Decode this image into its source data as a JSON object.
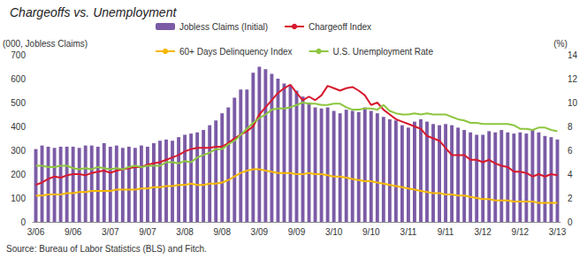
{
  "chart_data": {
    "type": "bar",
    "title": "Chargeoffs vs. Unemployment",
    "source": "Source: Bureau of Labor Statistics (BLS) and Fitch.",
    "y_label": "(000, Jobless Claims)",
    "y2_label": "(%)",
    "categories": [
      "3/06",
      null,
      null,
      null,
      null,
      null,
      "9/06",
      null,
      null,
      null,
      null,
      null,
      "3/07",
      null,
      null,
      null,
      null,
      null,
      "9/07",
      null,
      null,
      null,
      null,
      null,
      "3/08",
      null,
      null,
      null,
      null,
      null,
      "9/08",
      null,
      null,
      null,
      null,
      null,
      "3/09",
      null,
      null,
      null,
      null,
      null,
      "9/09",
      null,
      null,
      null,
      null,
      null,
      "3/10",
      null,
      null,
      null,
      null,
      null,
      "9/10",
      null,
      null,
      null,
      null,
      null,
      "3/11",
      null,
      null,
      null,
      null,
      null,
      "9/11",
      null,
      null,
      null,
      null,
      null,
      "3/12",
      null,
      null,
      null,
      null,
      null,
      "9/12",
      null,
      null,
      null,
      null,
      null,
      "3/13"
    ],
    "series": [
      {
        "name": "Jobless Claims (Initial)",
        "type": "bar",
        "color": "#7b5ba6",
        "values": [
          305,
          320,
          315,
          310,
          315,
          315,
          315,
          310,
          320,
          320,
          315,
          330,
          315,
          320,
          310,
          315,
          310,
          320,
          315,
          330,
          340,
          345,
          340,
          355,
          365,
          370,
          375,
          385,
          405,
          425,
          455,
          480,
          520,
          555,
          555,
          625,
          650,
          640,
          620,
          600,
          580,
          570,
          550,
          525,
          500,
          480,
          475,
          480,
          465,
          455,
          470,
          465,
          460,
          480,
          465,
          455,
          440,
          430,
          425,
          405,
          395,
          420,
          430,
          420,
          410,
          405,
          410,
          405,
          395,
          385,
          375,
          365,
          365,
          380,
          375,
          385,
          375,
          370,
          375,
          370,
          385,
          375,
          360,
          355,
          345
        ]
      },
      {
        "name": "Chargeoff Index",
        "type": "line",
        "axis": "y2",
        "color": "#d7192e",
        "values": [
          3.1,
          3.3,
          3.6,
          3.8,
          3.7,
          3.9,
          4.0,
          4.0,
          3.9,
          4.1,
          4.2,
          4.3,
          4.1,
          4.3,
          4.4,
          4.5,
          4.6,
          4.6,
          4.8,
          4.9,
          5.0,
          5.2,
          5.4,
          5.6,
          5.9,
          6.1,
          6.2,
          6.2,
          6.2,
          6.3,
          6.3,
          6.6,
          7.0,
          7.3,
          7.6,
          8.0,
          9.0,
          9.6,
          10.2,
          10.8,
          11.2,
          11.5,
          10.8,
          10.2,
          10.5,
          10.2,
          10.6,
          11.4,
          11.2,
          11.0,
          11.2,
          11.3,
          11.0,
          10.6,
          9.8,
          10.0,
          9.4,
          9.0,
          8.6,
          8.4,
          8.2,
          8.0,
          7.8,
          7.2,
          7.0,
          6.8,
          6.2,
          5.6,
          5.6,
          5.6,
          5.2,
          5.2,
          5.0,
          5.2,
          4.9,
          4.7,
          4.6,
          4.2,
          4.2,
          4.1,
          3.8,
          4.0,
          3.8,
          4.0,
          3.9
        ]
      },
      {
        "name": "60+ Days Delinquency Index",
        "type": "line",
        "axis": "y2",
        "color": "#f5b800",
        "values": [
          2.2,
          2.2,
          2.3,
          2.3,
          2.3,
          2.4,
          2.4,
          2.5,
          2.5,
          2.6,
          2.6,
          2.6,
          2.6,
          2.7,
          2.7,
          2.7,
          2.7,
          2.8,
          2.8,
          2.9,
          2.9,
          3.0,
          3.0,
          3.1,
          3.1,
          3.2,
          3.1,
          3.1,
          3.2,
          3.2,
          3.3,
          3.5,
          3.8,
          4.1,
          4.3,
          4.4,
          4.4,
          4.3,
          4.2,
          4.1,
          4.1,
          4.1,
          4.0,
          4.0,
          4.1,
          4.0,
          4.0,
          3.9,
          3.8,
          3.8,
          3.7,
          3.6,
          3.5,
          3.4,
          3.4,
          3.3,
          3.2,
          3.1,
          3.0,
          2.9,
          2.8,
          2.7,
          2.6,
          2.5,
          2.4,
          2.4,
          2.3,
          2.3,
          2.2,
          2.2,
          2.1,
          2.0,
          1.9,
          1.9,
          1.8,
          1.8,
          1.8,
          1.7,
          1.7,
          1.7,
          1.7,
          1.6,
          1.6,
          1.6,
          1.6
        ]
      },
      {
        "name": "U.S. Unemployment Rate",
        "type": "line",
        "axis": "y2",
        "color": "#8dc63f",
        "values": [
          4.7,
          4.7,
          4.6,
          4.6,
          4.7,
          4.7,
          4.5,
          4.4,
          4.5,
          4.4,
          4.6,
          4.5,
          4.4,
          4.5,
          4.4,
          4.6,
          4.7,
          4.6,
          4.7,
          4.7,
          4.7,
          5.0,
          5.0,
          4.9,
          5.1,
          5.0,
          5.4,
          5.6,
          5.8,
          6.1,
          6.1,
          6.5,
          6.8,
          7.3,
          7.8,
          8.3,
          8.7,
          9.0,
          9.4,
          9.5,
          9.5,
          9.6,
          9.8,
          10.0,
          9.9,
          9.9,
          9.8,
          9.8,
          9.9,
          9.9,
          9.6,
          9.4,
          9.4,
          9.5,
          9.5,
          9.4,
          9.8,
          9.3,
          9.1,
          9.0,
          9.0,
          9.1,
          9.0,
          9.1,
          9.0,
          9.0,
          9.0,
          8.8,
          8.6,
          8.5,
          8.3,
          8.3,
          8.2,
          8.2,
          8.2,
          8.2,
          8.2,
          8.1,
          7.8,
          7.8,
          7.7,
          7.9,
          7.9,
          7.7,
          7.6
        ]
      }
    ],
    "ylim": [
      0,
      700
    ],
    "yticks": [
      0,
      100,
      200,
      300,
      400,
      500,
      600,
      700
    ],
    "y2lim": [
      0,
      14
    ],
    "y2ticks": [
      0,
      2,
      4,
      6,
      8,
      10,
      12,
      14
    ],
    "legend": "top",
    "grid": false
  }
}
